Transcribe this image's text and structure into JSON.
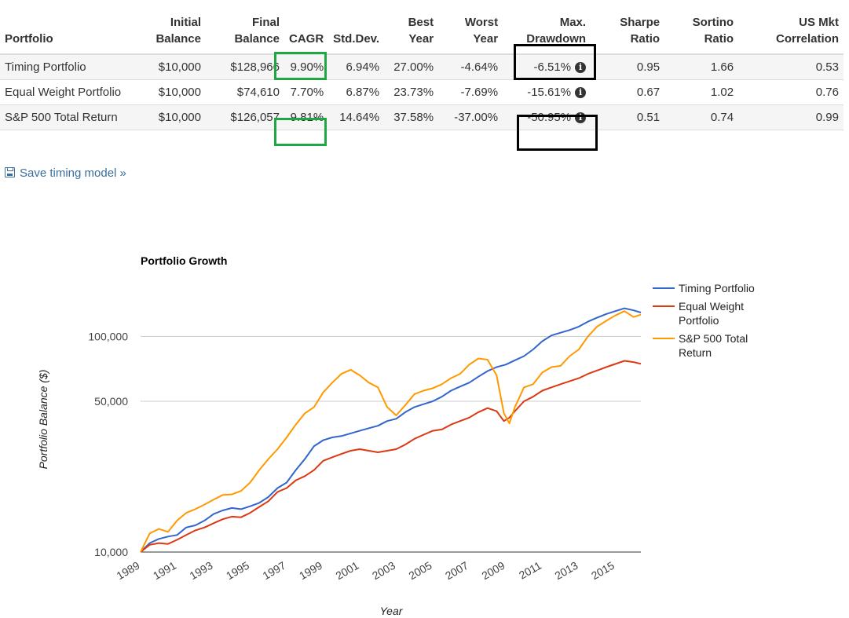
{
  "table": {
    "headers": [
      "Portfolio",
      "Initial\nBalance",
      "Final\nBalance",
      "CAGR",
      "Std.Dev.",
      "Best\nYear",
      "Worst\nYear",
      "Max.\nDrawdown",
      "Sharpe\nRatio",
      "Sortino\nRatio",
      "US Mkt\nCorrelation"
    ],
    "rows": [
      {
        "portfolio": "Timing Portfolio",
        "initial": "$10,000",
        "final": "$128,966",
        "cagr": "9.90%",
        "stddev": "6.94%",
        "best": "27.00%",
        "worst": "-4.64%",
        "drawdown": "-6.51%",
        "sharpe": "0.95",
        "sortino": "1.66",
        "correlation": "0.53"
      },
      {
        "portfolio": "Equal Weight Portfolio",
        "initial": "$10,000",
        "final": "$74,610",
        "cagr": "7.70%",
        "stddev": "6.87%",
        "best": "23.73%",
        "worst": "-7.69%",
        "drawdown": "-15.61%",
        "sharpe": "0.67",
        "sortino": "1.02",
        "correlation": "0.76"
      },
      {
        "portfolio": "S&P 500 Total Return",
        "initial": "$10,000",
        "final": "$126,057",
        "cagr": "9.81%",
        "stddev": "14.64%",
        "best": "37.58%",
        "worst": "-37.00%",
        "drawdown": "-50.95%",
        "sharpe": "0.51",
        "sortino": "0.74",
        "correlation": "0.99"
      }
    ],
    "info_icon_glyph": "i"
  },
  "save_link": {
    "label": "Save timing model »",
    "icon": "disk-icon"
  },
  "highlight_colors": {
    "cagr": "#21a645",
    "drawdown": "#000000"
  },
  "chart_data": {
    "type": "line",
    "title": "Portfolio Growth",
    "xlabel": "Year",
    "ylabel": "Portfolio Balance ($)",
    "y_scale": "log",
    "ylim": [
      10000,
      150000
    ],
    "xlim": [
      1989,
      2016.4
    ],
    "x_ticks": [
      "1989",
      "1991",
      "1993",
      "1995",
      "1997",
      "1999",
      "2001",
      "2003",
      "2005",
      "2007",
      "2009",
      "2011",
      "2013",
      "2015"
    ],
    "y_ticks": [
      {
        "value": 10000,
        "label": "10,000"
      },
      {
        "value": 50000,
        "label": "50,000"
      },
      {
        "value": 100000,
        "label": "100,000"
      }
    ],
    "grid": true,
    "legend_position": "right",
    "series": [
      {
        "name": "Timing Portfolio",
        "color": "#3366cc",
        "points": [
          [
            1989.0,
            10000
          ],
          [
            1989.5,
            11000
          ],
          [
            1990.0,
            11500
          ],
          [
            1990.5,
            11800
          ],
          [
            1991.0,
            12000
          ],
          [
            1991.5,
            13000
          ],
          [
            1992.0,
            13300
          ],
          [
            1992.5,
            14000
          ],
          [
            1993.0,
            15000
          ],
          [
            1993.5,
            15600
          ],
          [
            1994.0,
            16000
          ],
          [
            1994.5,
            15800
          ],
          [
            1995.0,
            16300
          ],
          [
            1995.5,
            16900
          ],
          [
            1996.0,
            18000
          ],
          [
            1996.5,
            19800
          ],
          [
            1997.0,
            21000
          ],
          [
            1997.5,
            24000
          ],
          [
            1998.0,
            27000
          ],
          [
            1998.5,
            31000
          ],
          [
            1999.0,
            33000
          ],
          [
            1999.5,
            34000
          ],
          [
            2000.0,
            34500
          ],
          [
            2000.5,
            35500
          ],
          [
            2001.0,
            36500
          ],
          [
            2001.5,
            37500
          ],
          [
            2002.0,
            38500
          ],
          [
            2002.5,
            40500
          ],
          [
            2003.0,
            41500
          ],
          [
            2003.5,
            44500
          ],
          [
            2004.0,
            47000
          ],
          [
            2004.5,
            48500
          ],
          [
            2005.0,
            50000
          ],
          [
            2005.5,
            52500
          ],
          [
            2006.0,
            56000
          ],
          [
            2006.5,
            58500
          ],
          [
            2007.0,
            61000
          ],
          [
            2007.5,
            65000
          ],
          [
            2008.0,
            69000
          ],
          [
            2008.5,
            72000
          ],
          [
            2009.0,
            74000
          ],
          [
            2009.5,
            77500
          ],
          [
            2010.0,
            81000
          ],
          [
            2010.5,
            87000
          ],
          [
            2011.0,
            95000
          ],
          [
            2011.5,
            101000
          ],
          [
            2012.0,
            104000
          ],
          [
            2012.5,
            107000
          ],
          [
            2013.0,
            111000
          ],
          [
            2013.5,
            117000
          ],
          [
            2014.0,
            122000
          ],
          [
            2014.5,
            127000
          ],
          [
            2015.0,
            131000
          ],
          [
            2015.5,
            135000
          ],
          [
            2016.0,
            132000
          ],
          [
            2016.4,
            129000
          ]
        ]
      },
      {
        "name": "Equal Weight Portfolio",
        "color": "#dc3912",
        "points": [
          [
            1989.0,
            10000
          ],
          [
            1989.5,
            10800
          ],
          [
            1990.0,
            11000
          ],
          [
            1990.5,
            10900
          ],
          [
            1991.0,
            11400
          ],
          [
            1991.5,
            12000
          ],
          [
            1992.0,
            12600
          ],
          [
            1992.5,
            13000
          ],
          [
            1993.0,
            13600
          ],
          [
            1993.5,
            14200
          ],
          [
            1994.0,
            14600
          ],
          [
            1994.5,
            14500
          ],
          [
            1995.0,
            15200
          ],
          [
            1995.5,
            16200
          ],
          [
            1996.0,
            17200
          ],
          [
            1996.5,
            19000
          ],
          [
            1997.0,
            19800
          ],
          [
            1997.5,
            21500
          ],
          [
            1998.0,
            22500
          ],
          [
            1998.5,
            24000
          ],
          [
            1999.0,
            26500
          ],
          [
            1999.5,
            27500
          ],
          [
            2000.0,
            28500
          ],
          [
            2000.5,
            29500
          ],
          [
            2001.0,
            30000
          ],
          [
            2001.5,
            29500
          ],
          [
            2002.0,
            29000
          ],
          [
            2002.5,
            29500
          ],
          [
            2003.0,
            30000
          ],
          [
            2003.5,
            31500
          ],
          [
            2004.0,
            33500
          ],
          [
            2004.5,
            35000
          ],
          [
            2005.0,
            36500
          ],
          [
            2005.5,
            37000
          ],
          [
            2006.0,
            39000
          ],
          [
            2006.5,
            40500
          ],
          [
            2007.0,
            42000
          ],
          [
            2007.5,
            44500
          ],
          [
            2008.0,
            46500
          ],
          [
            2008.5,
            45000
          ],
          [
            2008.9,
            40500
          ],
          [
            2009.2,
            42000
          ],
          [
            2009.5,
            45000
          ],
          [
            2010.0,
            50000
          ],
          [
            2010.5,
            52500
          ],
          [
            2011.0,
            56000
          ],
          [
            2011.5,
            58000
          ],
          [
            2012.0,
            60000
          ],
          [
            2012.5,
            62000
          ],
          [
            2013.0,
            64000
          ],
          [
            2013.5,
            67000
          ],
          [
            2014.0,
            69500
          ],
          [
            2014.5,
            72000
          ],
          [
            2015.0,
            74500
          ],
          [
            2015.5,
            77000
          ],
          [
            2016.0,
            76000
          ],
          [
            2016.4,
            74610
          ]
        ]
      },
      {
        "name": "S&P 500 Total Return",
        "color": "#ff9900",
        "points": [
          [
            1989.0,
            10000
          ],
          [
            1989.5,
            12200
          ],
          [
            1990.0,
            12800
          ],
          [
            1990.5,
            12400
          ],
          [
            1991.0,
            14000
          ],
          [
            1991.5,
            15200
          ],
          [
            1992.0,
            15800
          ],
          [
            1992.5,
            16600
          ],
          [
            1993.0,
            17500
          ],
          [
            1993.5,
            18400
          ],
          [
            1994.0,
            18500
          ],
          [
            1994.5,
            19200
          ],
          [
            1995.0,
            21000
          ],
          [
            1995.5,
            24000
          ],
          [
            1996.0,
            27000
          ],
          [
            1996.5,
            30000
          ],
          [
            1997.0,
            34000
          ],
          [
            1997.5,
            39000
          ],
          [
            1998.0,
            44000
          ],
          [
            1998.5,
            47000
          ],
          [
            1999.0,
            55000
          ],
          [
            1999.5,
            61000
          ],
          [
            2000.0,
            67000
          ],
          [
            2000.5,
            70000
          ],
          [
            2001.0,
            66000
          ],
          [
            2001.5,
            61000
          ],
          [
            2002.0,
            58000
          ],
          [
            2002.5,
            47000
          ],
          [
            2003.0,
            43000
          ],
          [
            2003.5,
            48000
          ],
          [
            2004.0,
            54000
          ],
          [
            2004.5,
            56000
          ],
          [
            2005.0,
            57500
          ],
          [
            2005.5,
            60000
          ],
          [
            2006.0,
            64000
          ],
          [
            2006.5,
            67000
          ],
          [
            2007.0,
            74000
          ],
          [
            2007.5,
            79000
          ],
          [
            2008.0,
            78000
          ],
          [
            2008.5,
            66000
          ],
          [
            2008.9,
            44000
          ],
          [
            2009.2,
            39500
          ],
          [
            2009.5,
            47000
          ],
          [
            2010.0,
            58000
          ],
          [
            2010.5,
            60000
          ],
          [
            2011.0,
            68000
          ],
          [
            2011.5,
            72000
          ],
          [
            2012.0,
            73000
          ],
          [
            2012.5,
            81000
          ],
          [
            2013.0,
            87000
          ],
          [
            2013.5,
            100000
          ],
          [
            2014.0,
            111000
          ],
          [
            2014.5,
            118000
          ],
          [
            2015.0,
            125000
          ],
          [
            2015.5,
            131000
          ],
          [
            2016.0,
            123000
          ],
          [
            2016.4,
            126057
          ]
        ]
      }
    ]
  }
}
